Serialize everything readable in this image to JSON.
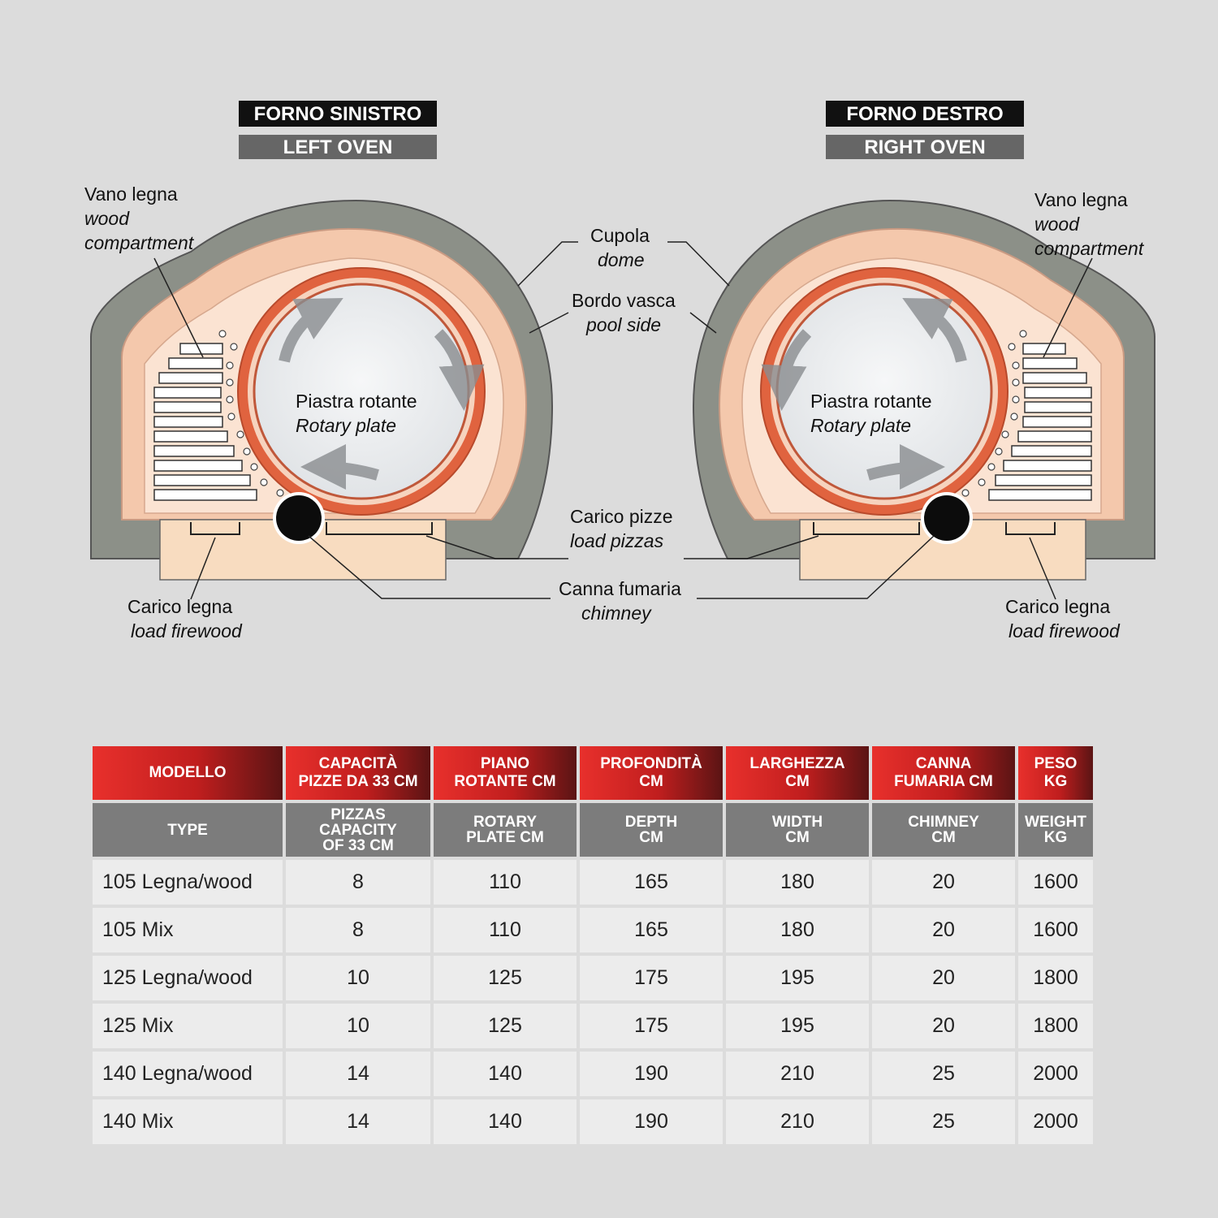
{
  "left_oven": {
    "title_it": "FORNO SINISTRO",
    "title_en": "LEFT OVEN"
  },
  "right_oven": {
    "title_it": "FORNO DESTRO",
    "title_en": "RIGHT OVEN"
  },
  "labels": {
    "wood_compartment": {
      "it": "Vano legna",
      "en1": "wood",
      "en2": "compartment"
    },
    "dome": {
      "it": "Cupola",
      "en": "dome"
    },
    "pool_side": {
      "it": "Bordo vasca",
      "en": "pool side"
    },
    "rotary_plate": {
      "it": "Piastra rotante",
      "en": "Rotary plate"
    },
    "load_pizzas": {
      "it": "Carico pizze",
      "en": "load pizzas"
    },
    "chimney": {
      "it": "Canna fumaria",
      "en": "chimney"
    },
    "load_firewood": {
      "it": "Carico legna",
      "en": "load firewood"
    }
  },
  "colors": {
    "outer_shell": "#8a8e86",
    "insulation": "#f4c8ac",
    "dome_red": "#d9573a",
    "base": "#f8dcc0",
    "header_red": "#d42424",
    "header_gray": "#7c7c7c"
  },
  "table": {
    "headers_it": [
      [
        "MODELLO"
      ],
      [
        "CAPACITÀ",
        "PIZZE DA 33 CM"
      ],
      [
        "PIANO",
        "ROTANTE CM"
      ],
      [
        "PROFONDITÀ",
        "CM"
      ],
      [
        "LARGHEZZA",
        "CM"
      ],
      [
        "CANNA",
        "FUMARIA CM"
      ],
      [
        "PESO",
        "KG"
      ]
    ],
    "headers_en": [
      [
        "TYPE"
      ],
      [
        "PIZZAS",
        "CAPACITY",
        "OF 33 CM"
      ],
      [
        "ROTARY",
        "PLATE CM"
      ],
      [
        "DEPTH",
        "CM"
      ],
      [
        "WIDTH",
        "CM"
      ],
      [
        "CHIMNEY",
        "CM"
      ],
      [
        "WEIGHT",
        "KG"
      ]
    ],
    "rows": [
      [
        "105  Legna/wood",
        "8",
        "110",
        "165",
        "180",
        "20",
        "1600"
      ],
      [
        "105 Mix",
        "8",
        "110",
        "165",
        "180",
        "20",
        "1600"
      ],
      [
        "125  Legna/wood",
        "10",
        "125",
        "175",
        "195",
        "20",
        "1800"
      ],
      [
        "125 Mix",
        "10",
        "125",
        "175",
        "195",
        "20",
        "1800"
      ],
      [
        "140  Legna/wood",
        "14",
        "140",
        "190",
        "210",
        "25",
        "2000"
      ],
      [
        "140 Mix",
        "14",
        "140",
        "190",
        "210",
        "25",
        "2000"
      ]
    ]
  }
}
